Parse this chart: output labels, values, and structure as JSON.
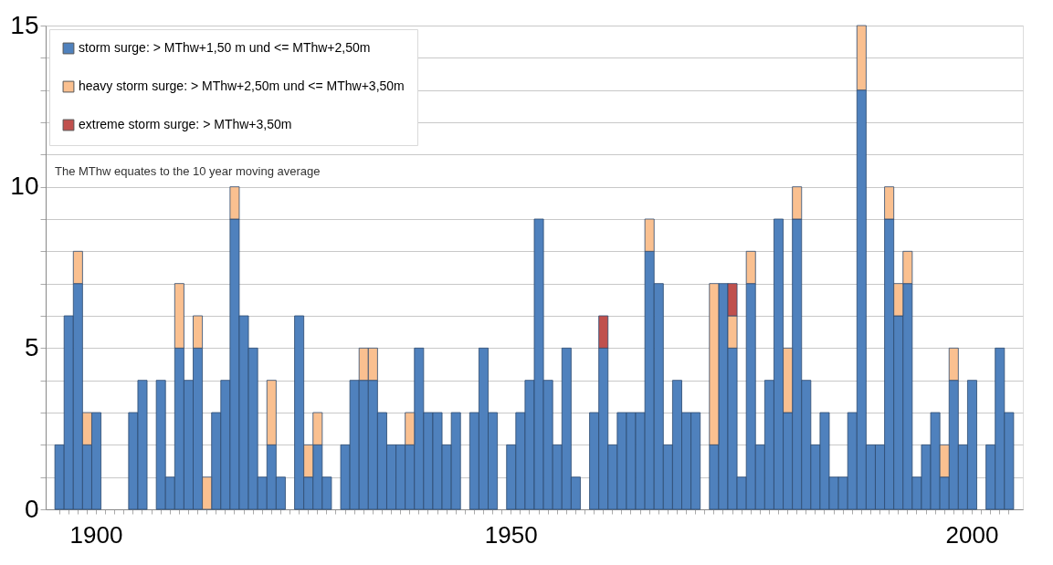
{
  "chart_data": {
    "type": "bar",
    "stacked": true,
    "categories": [
      null,
      null,
      null,
      null,
      "1900",
      null,
      null,
      null,
      null,
      null,
      null,
      null,
      null,
      null,
      null,
      null,
      null,
      null,
      null,
      null,
      null,
      null,
      null,
      null,
      null,
      null,
      null,
      null,
      null,
      null,
      null,
      null,
      null,
      null,
      null,
      null,
      null,
      null,
      null,
      null,
      null,
      null,
      null,
      null,
      null,
      null,
      null,
      null,
      null,
      "1950",
      null,
      null,
      null,
      null,
      null,
      null,
      null,
      null,
      null,
      null,
      null,
      null,
      null,
      null,
      null,
      null,
      null,
      null,
      null,
      null,
      null,
      null,
      null,
      null,
      null,
      null,
      null,
      null,
      null,
      null,
      null,
      null,
      null,
      null,
      null,
      null,
      null,
      null,
      null,
      null,
      null,
      null,
      null,
      null,
      null,
      null,
      null,
      null,
      null,
      "2000",
      null,
      null,
      null,
      null
    ],
    "series": [
      {
        "name": "storm surge: > MThw+1,50 m und <= MThw+2,50m",
        "color": "#4f81bd",
        "values": [
          2,
          6,
          7,
          2,
          3,
          null,
          null,
          null,
          3,
          4,
          null,
          4,
          1,
          5,
          4,
          5,
          null,
          3,
          4,
          9,
          6,
          5,
          1,
          2,
          1,
          null,
          6,
          1,
          2,
          1,
          null,
          2,
          4,
          4,
          4,
          3,
          2,
          2,
          2,
          5,
          3,
          3,
          2,
          3,
          null,
          3,
          5,
          3,
          null,
          2,
          3,
          4,
          9,
          4,
          2,
          5,
          1,
          null,
          3,
          5,
          2,
          3,
          3,
          3,
          8,
          7,
          2,
          4,
          3,
          3,
          null,
          2,
          7,
          5,
          1,
          7,
          2,
          4,
          9,
          3,
          9,
          4,
          2,
          3,
          1,
          1,
          3,
          13,
          2,
          2,
          9,
          6,
          7,
          1,
          2,
          3,
          1,
          4,
          2,
          4,
          null,
          2,
          5,
          3
        ]
      },
      {
        "name": "heavy storm surge: > MThw+2,50m und <= MThw+3,50m",
        "color": "#fac090",
        "values": [
          null,
          null,
          1,
          1,
          null,
          null,
          null,
          null,
          null,
          null,
          null,
          null,
          null,
          2,
          null,
          1,
          1,
          null,
          null,
          1,
          null,
          null,
          null,
          2,
          null,
          null,
          null,
          1,
          1,
          null,
          null,
          null,
          null,
          1,
          1,
          null,
          null,
          null,
          1,
          null,
          null,
          null,
          null,
          null,
          null,
          null,
          null,
          null,
          null,
          null,
          null,
          null,
          null,
          null,
          null,
          null,
          null,
          null,
          null,
          null,
          null,
          null,
          null,
          null,
          1,
          null,
          null,
          null,
          null,
          null,
          null,
          5,
          null,
          1,
          null,
          1,
          null,
          null,
          null,
          2,
          1,
          null,
          null,
          null,
          null,
          null,
          null,
          2,
          null,
          null,
          1,
          1,
          1,
          null,
          null,
          null,
          1,
          1,
          null,
          null,
          null,
          null,
          null,
          null
        ]
      },
      {
        "name": "extreme storm surge: > MThw+3,50m",
        "color": "#c0504d",
        "values": [
          null,
          null,
          null,
          null,
          null,
          null,
          null,
          null,
          null,
          null,
          null,
          null,
          null,
          null,
          null,
          null,
          null,
          null,
          null,
          null,
          null,
          null,
          null,
          null,
          null,
          null,
          null,
          null,
          null,
          null,
          null,
          null,
          null,
          null,
          null,
          null,
          null,
          null,
          null,
          null,
          null,
          null,
          null,
          null,
          null,
          null,
          null,
          null,
          null,
          null,
          null,
          null,
          null,
          null,
          null,
          null,
          null,
          null,
          null,
          1,
          null,
          null,
          null,
          null,
          null,
          null,
          null,
          null,
          null,
          null,
          null,
          null,
          null,
          1,
          null,
          null,
          null,
          null,
          null,
          null,
          null,
          null,
          null,
          null,
          null,
          null,
          null,
          null,
          null,
          null,
          null,
          null,
          null,
          null,
          null,
          null,
          null,
          null,
          null,
          null,
          null,
          null,
          null,
          null
        ]
      }
    ],
    "ylim": [
      0,
      15
    ],
    "yticks": [
      0,
      {
        "value": 1,
        "label": null
      },
      {
        "value": 2,
        "label": null
      },
      {
        "value": 3,
        "label": null
      },
      {
        "value": 4,
        "label": null
      },
      5,
      {
        "value": 6,
        "label": null
      },
      {
        "value": 7,
        "label": null
      },
      {
        "value": 8,
        "label": null
      },
      {
        "value": 9,
        "label": null
      },
      10,
      {
        "value": 11,
        "label": null
      },
      {
        "value": 12,
        "label": null
      },
      {
        "value": 13,
        "label": null
      },
      {
        "value": 14,
        "label": null
      },
      15
    ],
    "grid": "y",
    "legend": "top left",
    "annotations": [
      "The MThw equates to the 10 year moving average"
    ]
  }
}
